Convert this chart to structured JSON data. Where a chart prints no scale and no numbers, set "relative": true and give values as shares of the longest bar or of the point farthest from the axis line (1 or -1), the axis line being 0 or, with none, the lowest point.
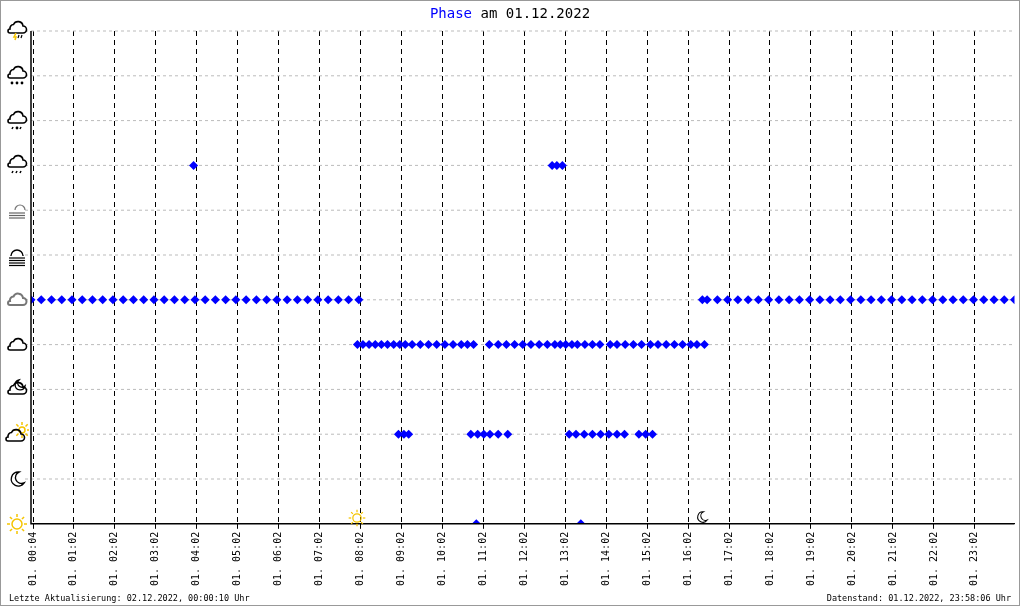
{
  "chart_data": {
    "type": "scatter",
    "title": "Phase am 01.12.2022",
    "xlim": [
      "2022-12-01T00:00",
      "2022-12-02T00:00"
    ],
    "xticks": [
      {
        "value": "2022-12-01T00:04",
        "label": "01. 00:04"
      },
      {
        "value": "2022-12-01T01:02",
        "label": "01. 01:02"
      },
      {
        "value": "2022-12-01T02:02",
        "label": "01. 02:02"
      },
      {
        "value": "2022-12-01T03:02",
        "label": "01. 03:02"
      },
      {
        "value": "2022-12-01T04:02",
        "label": "01. 04:02"
      },
      {
        "value": "2022-12-01T05:02",
        "label": "01. 05:02"
      },
      {
        "value": "2022-12-01T06:02",
        "label": "01. 06:02"
      },
      {
        "value": "2022-12-01T07:02",
        "label": "01. 07:02"
      },
      {
        "value": "2022-12-01T08:02",
        "label": "01. 08:02"
      },
      {
        "value": "2022-12-01T09:02",
        "label": "01. 09:02"
      },
      {
        "value": "2022-12-01T10:02",
        "label": "01. 10:02"
      },
      {
        "value": "2022-12-01T11:02",
        "label": "01. 11:02"
      },
      {
        "value": "2022-12-01T12:02",
        "label": "01. 12:02"
      },
      {
        "value": "2022-12-01T13:02",
        "label": "01. 13:02"
      },
      {
        "value": "2022-12-01T14:02",
        "label": "01. 14:02"
      },
      {
        "value": "2022-12-01T15:02",
        "label": "01. 15:02"
      },
      {
        "value": "2022-12-01T16:02",
        "label": "01. 16:02"
      },
      {
        "value": "2022-12-01T17:02",
        "label": "01. 17:02"
      },
      {
        "value": "2022-12-01T18:02",
        "label": "01. 18:02"
      },
      {
        "value": "2022-12-01T19:02",
        "label": "01. 19:02"
      },
      {
        "value": "2022-12-01T20:02",
        "label": "01. 20:02"
      },
      {
        "value": "2022-12-01T21:02",
        "label": "01. 21:02"
      },
      {
        "value": "2022-12-01T22:02",
        "label": "01. 22:02"
      },
      {
        "value": "2022-12-01T23:02",
        "label": "01. 23:02"
      }
    ],
    "relative": true,
    "grid": "x",
    "marker": "diamond",
    "annotations": [
      "Letzte Aktualisierung: 02.12.2022, 00:00:10 Uhr",
      "Datenstand: 01.12.2022, 23:58:06 Uhr"
    ],
    "series": [
      {
        "color": "#0000ff",
        "x": [
          "2022-12-01T00:00",
          "2022-12-01T00:15",
          "2022-12-01T00:30",
          "2022-12-01T00:45",
          "2022-12-01T01:00",
          "2022-12-01T01:15",
          "2022-12-01T01:30",
          "2022-12-01T01:45",
          "2022-12-01T02:00",
          "2022-12-01T02:15",
          "2022-12-01T02:30",
          "2022-12-01T02:45",
          "2022-12-01T03:00",
          "2022-12-01T03:15",
          "2022-12-01T03:30",
          "2022-12-01T03:45",
          "2022-12-01T04:00",
          "2022-12-01T04:15",
          "2022-12-01T04:30",
          "2022-12-01T04:45",
          "2022-12-01T05:00",
          "2022-12-01T05:15",
          "2022-12-01T05:30",
          "2022-12-01T05:45",
          "2022-12-01T06:00",
          "2022-12-01T06:15",
          "2022-12-01T06:30",
          "2022-12-01T06:45",
          "2022-12-01T07:00",
          "2022-12-01T07:15",
          "2022-12-01T07:30",
          "2022-12-01T07:45",
          "2022-12-01T08:00",
          "2022-12-01T07:58",
          "2022-12-01T08:06",
          "2022-12-01T08:15",
          "2022-12-01T08:24",
          "2022-12-01T08:33",
          "2022-12-01T08:42",
          "2022-12-01T08:51",
          "2022-12-01T09:00",
          "2022-12-01T09:08",
          "2022-12-01T09:18",
          "2022-12-01T09:30",
          "2022-12-01T09:42",
          "2022-12-01T09:54",
          "2022-12-01T10:06",
          "2022-12-01T10:18",
          "2022-12-01T10:30",
          "2022-12-01T10:39",
          "2022-12-01T10:48",
          "2022-12-01T11:11",
          "2022-12-01T11:24",
          "2022-12-01T11:36",
          "2022-12-01T11:48",
          "2022-12-01T12:00",
          "2022-12-01T12:12",
          "2022-12-01T12:24",
          "2022-12-01T12:36",
          "2022-12-01T12:47",
          "2022-12-01T12:55",
          "2022-12-01T13:03",
          "2022-12-01T13:12",
          "2022-12-01T13:20",
          "2022-12-01T13:31",
          "2022-12-01T13:42",
          "2022-12-01T13:53",
          "2022-12-01T14:08",
          "2022-12-01T14:18",
          "2022-12-01T14:30",
          "2022-12-01T14:42",
          "2022-12-01T14:54",
          "2022-12-01T15:07",
          "2022-12-01T15:18",
          "2022-12-01T15:30",
          "2022-12-01T15:42",
          "2022-12-01T15:54",
          "2022-12-01T16:06",
          "2022-12-01T16:15",
          "2022-12-01T16:26",
          "2022-12-01T08:58",
          "2022-12-01T09:06",
          "2022-12-01T09:13",
          "2022-12-01T10:44",
          "2022-12-01T10:54",
          "2022-12-01T11:03",
          "2022-12-01T11:12",
          "2022-12-01T11:24",
          "2022-12-01T11:38",
          "2022-12-01T13:08",
          "2022-12-01T13:18",
          "2022-12-01T13:30",
          "2022-12-01T13:42",
          "2022-12-01T13:54",
          "2022-12-01T14:06",
          "2022-12-01T14:18",
          "2022-12-01T14:29",
          "2022-12-01T14:50",
          "2022-12-01T15:00",
          "2022-12-01T15:10",
          "2022-12-01T03:58",
          "2022-12-01T12:43",
          "2022-12-01T12:50",
          "2022-12-01T12:58",
          "2022-12-01T10:52",
          "2022-12-01T13:25",
          "2022-12-01T16:23",
          "2022-12-01T16:30",
          "2022-12-01T16:45",
          "2022-12-01T17:00",
          "2022-12-01T17:15",
          "2022-12-01T17:30",
          "2022-12-01T17:45",
          "2022-12-01T18:00",
          "2022-12-01T18:15",
          "2022-12-01T18:30",
          "2022-12-01T18:45",
          "2022-12-01T19:00",
          "2022-12-01T19:15",
          "2022-12-01T19:30",
          "2022-12-01T19:45",
          "2022-12-01T20:00",
          "2022-12-01T20:15",
          "2022-12-01T20:30",
          "2022-12-01T20:45",
          "2022-12-01T21:00",
          "2022-12-01T21:15",
          "2022-12-01T21:30",
          "2022-12-01T21:45",
          "2022-12-01T22:00",
          "2022-12-01T22:15",
          "2022-12-01T22:30",
          "2022-12-01T22:45",
          "2022-12-01T23:00",
          "2022-12-01T23:15",
          "2022-12-01T23:30",
          "2022-12-01T23:45",
          "2022-12-02T00:00"
        ],
        "values": [
          0.625,
          0.625,
          0.625,
          0.625,
          0.625,
          0.625,
          0.625,
          0.625,
          0.625,
          0.625,
          0.625,
          0.625,
          0.625,
          0.625,
          0.625,
          0.625,
          0.625,
          0.625,
          0.625,
          0.625,
          0.625,
          0.625,
          0.625,
          0.625,
          0.625,
          0.625,
          0.625,
          0.625,
          0.625,
          0.625,
          0.625,
          0.625,
          0.625,
          0.5,
          0.5,
          0.5,
          0.5,
          0.5,
          0.5,
          0.5,
          0.5,
          0.5,
          0.5,
          0.5,
          0.5,
          0.5,
          0.5,
          0.5,
          0.5,
          0.5,
          0.5,
          0.5,
          0.5,
          0.5,
          0.5,
          0.5,
          0.5,
          0.5,
          0.5,
          0.5,
          0.5,
          0.5,
          0.5,
          0.5,
          0.5,
          0.5,
          0.5,
          0.5,
          0.5,
          0.5,
          0.5,
          0.5,
          0.5,
          0.5,
          0.5,
          0.5,
          0.5,
          0.5,
          0.5,
          0.5,
          0.25,
          0.25,
          0.25,
          0.25,
          0.25,
          0.25,
          0.25,
          0.25,
          0.25,
          0.25,
          0.25,
          0.25,
          0.25,
          0.25,
          0.25,
          0.25,
          0.25,
          0.25,
          0.25,
          0.25,
          1,
          1,
          1,
          1,
          0,
          0,
          0.625,
          0.625,
          0.625,
          0.625,
          0.625,
          0.625,
          0.625,
          0.625,
          0.625,
          0.625,
          0.625,
          0.625,
          0.625,
          0.625,
          0.625,
          0.625,
          0.625,
          0.625,
          0.625,
          0.625,
          0.625,
          0.625,
          0.625,
          0.625,
          0.625,
          0.625,
          0.625,
          0.625,
          0.625,
          0.625,
          0.625,
          0.625
        ]
      }
    ]
  }
}
